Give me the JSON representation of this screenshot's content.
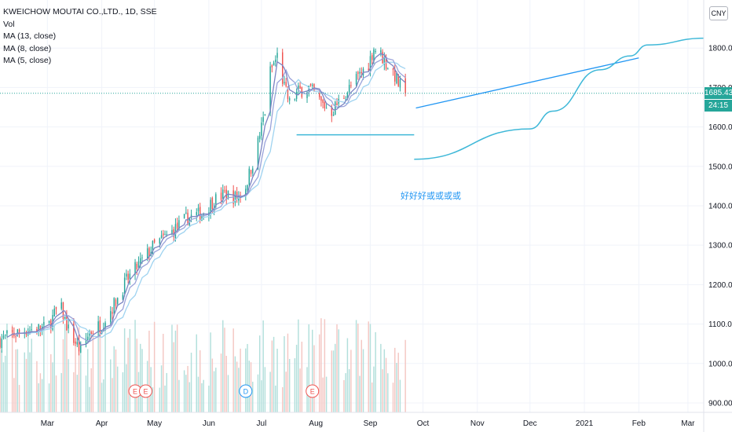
{
  "legend": {
    "symbol": "KWEICHOW MOUTAI CO.,LTD., 1D, SSE",
    "vol": "Vol",
    "ma13": "MA (13, close)",
    "ma8": "MA (8, close)",
    "ma5": "MA (5, close)"
  },
  "currency": "CNY",
  "last_price": "1685.43",
  "countdown": "24:15",
  "annotation_text": "好好好或或或或",
  "colors": {
    "up": "#26a69a",
    "down": "#ef5350",
    "ma5": "#7b83c2",
    "ma8": "#9aa3da",
    "ma13": "#9fd3f0",
    "drawing": "#3fb8d8",
    "trend": "#2196f3",
    "vol_up": "#b2dfdb",
    "vol_down": "#f4c7c3"
  },
  "events": [
    {
      "label": "E",
      "kind": "earnings",
      "date": "2020-04-20"
    },
    {
      "label": "E",
      "kind": "earnings",
      "date": "2020-04-26"
    },
    {
      "label": "D",
      "kind": "dividend",
      "date": "2020-06-22"
    },
    {
      "label": "E",
      "kind": "earnings",
      "date": "2020-07-30"
    }
  ],
  "chart_data": {
    "type": "candlestick",
    "title": "KWEICHOW MOUTAI CO.,LTD., 1D, SSE",
    "y_ticks": [
      "1800.00",
      "1700.00",
      "1600.00",
      "1500.00",
      "1400.00",
      "1300.00",
      "1200.00",
      "1100.00",
      "1000.00",
      "900.00"
    ],
    "y_tick_values": [
      1800,
      1700,
      1600,
      1500,
      1400,
      1300,
      1200,
      1100,
      1000,
      900
    ],
    "x_ticks": [
      "Mar",
      "Apr",
      "May",
      "Jun",
      "Jul",
      "Aug",
      "Sep",
      "Oct",
      "Nov",
      "Dec",
      "2021",
      "Feb",
      "Mar"
    ],
    "x_tick_dates": [
      "2020-03-01",
      "2020-04-01",
      "2020-05-01",
      "2020-06-01",
      "2020-07-01",
      "2020-08-01",
      "2020-09-01",
      "2020-10-01",
      "2020-11-01",
      "2020-12-01",
      "2021-01-01",
      "2021-02-01",
      "2021-03-01"
    ],
    "x_range": [
      "2020-02-03",
      "2021-03-10"
    ],
    "y_range": [
      876,
      1908
    ],
    "last_price": 1685.43,
    "close_path": [
      [
        "2020-02-03",
        1060
      ],
      [
        "2020-02-17",
        1085
      ],
      [
        "2020-03-01",
        1090
      ],
      [
        "2020-03-08",
        1150
      ],
      [
        "2020-03-13",
        1085
      ],
      [
        "2020-03-20",
        1030
      ],
      [
        "2020-03-25",
        1080
      ],
      [
        "2020-04-01",
        1100
      ],
      [
        "2020-04-08",
        1150
      ],
      [
        "2020-04-15",
        1210
      ],
      [
        "2020-04-22",
        1250
      ],
      [
        "2020-05-01",
        1300
      ],
      [
        "2020-05-10",
        1330
      ],
      [
        "2020-05-20",
        1370
      ],
      [
        "2020-05-28",
        1380
      ],
      [
        "2020-06-03",
        1410
      ],
      [
        "2020-06-10",
        1430
      ],
      [
        "2020-06-17",
        1420
      ],
      [
        "2020-06-22",
        1450
      ],
      [
        "2020-06-28",
        1540
      ],
      [
        "2020-07-03",
        1640
      ],
      [
        "2020-07-06",
        1740
      ],
      [
        "2020-07-10",
        1780
      ],
      [
        "2020-07-14",
        1700
      ],
      [
        "2020-07-17",
        1660
      ],
      [
        "2020-07-22",
        1690
      ],
      [
        "2020-07-28",
        1700
      ],
      [
        "2020-08-04",
        1660
      ],
      [
        "2020-08-10",
        1640
      ],
      [
        "2020-08-17",
        1680
      ],
      [
        "2020-08-24",
        1720
      ],
      [
        "2020-08-31",
        1760
      ],
      [
        "2020-09-03",
        1800
      ],
      [
        "2020-09-06",
        1790
      ],
      [
        "2020-09-10",
        1760
      ],
      [
        "2020-09-14",
        1740
      ],
      [
        "2020-09-17",
        1710
      ],
      [
        "2020-09-21",
        1685
      ]
    ],
    "drawings": [
      {
        "type": "horizontal_segment",
        "from": "2020-07-21",
        "to": "2020-09-26",
        "price": 1580
      },
      {
        "type": "trend_line",
        "from": [
          "2020-09-27",
          1648
        ],
        "to": [
          "2021-02-01",
          1775
        ]
      },
      {
        "type": "curve",
        "points": [
          [
            "2020-09-26",
            1518
          ],
          [
            "2020-12-01",
            1595
          ],
          [
            "2020-12-14",
            1640
          ],
          [
            "2021-01-10",
            1745
          ],
          [
            "2021-01-27",
            1780
          ],
          [
            "2021-02-06",
            1808
          ],
          [
            "2021-03-10",
            1825
          ]
        ]
      }
    ]
  }
}
